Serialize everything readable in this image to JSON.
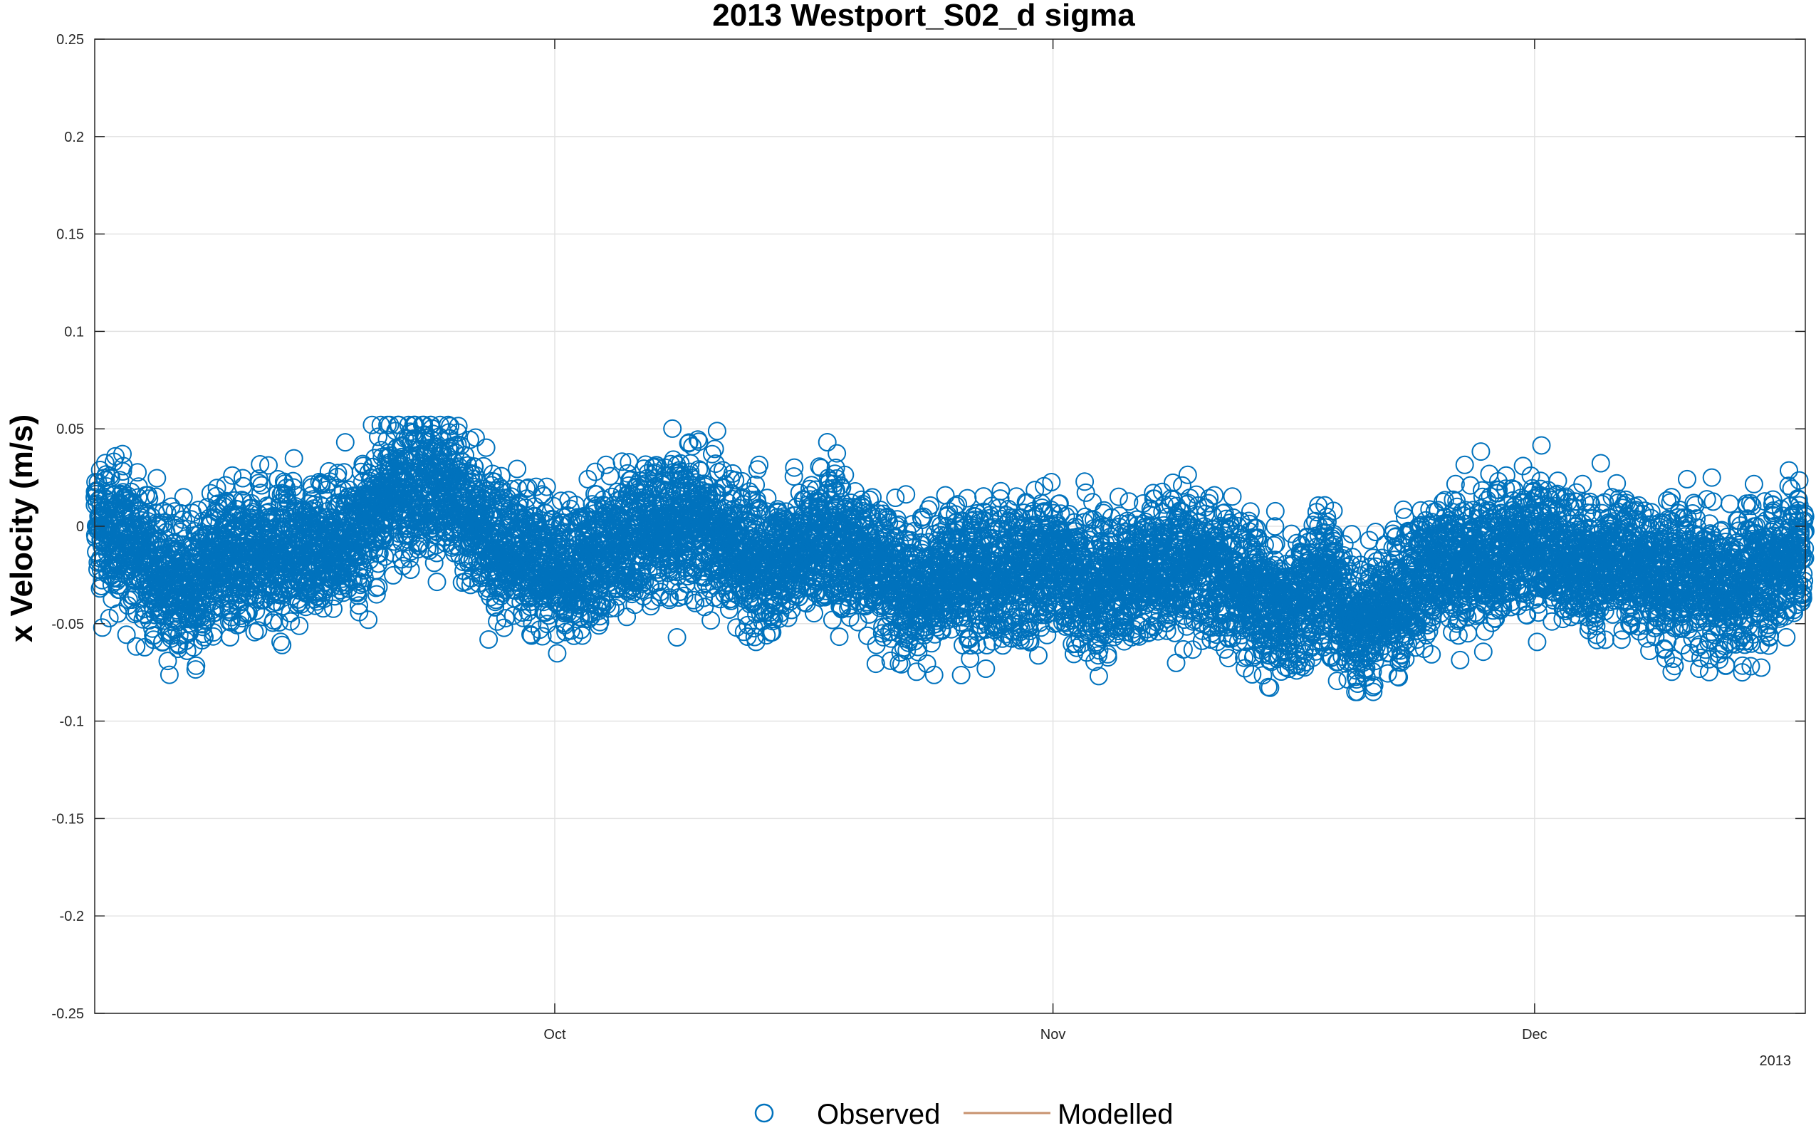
{
  "chart_data": {
    "type": "scatter",
    "title": "2013 Westport_S02_d sigma",
    "xlabel": "",
    "ylabel": "x Velocity (m/s)",
    "ylim": [
      -0.25,
      0.25
    ],
    "yticks": [
      0.25,
      0.2,
      0.15,
      0.1,
      0.05,
      0,
      -0.05,
      -0.1,
      -0.15,
      -0.2,
      -0.25
    ],
    "ytick_labels": [
      "0.25",
      "0.2",
      "0.15",
      "0.1",
      "0.05",
      "0",
      "-0.05",
      "-0.1",
      "-0.15",
      "-0.2",
      "-0.25"
    ],
    "xlim_days": [
      0,
      103
    ],
    "xticks_days": [
      27.7,
      57.7,
      86.7
    ],
    "xtick_labels": [
      "Oct",
      "Nov",
      "Dec"
    ],
    "x_year_label": "2013",
    "grid": true,
    "legend": {
      "placement": "bottom",
      "entries": [
        "Observed",
        "Modelled"
      ]
    },
    "series": [
      {
        "name": "Observed",
        "marker": "circle",
        "color": "#0072BD",
        "x_start_day": 0,
        "x_end_day": 103,
        "approx_points": 9000,
        "centerline_days": [
          0,
          2,
          4,
          6,
          8,
          10,
          12,
          14,
          16,
          18,
          20,
          22,
          24,
          26,
          28,
          30,
          32,
          34,
          36,
          38,
          40,
          42,
          44,
          46,
          48,
          50,
          52,
          54,
          56,
          58,
          60,
          62,
          64,
          66,
          68,
          70,
          72,
          74,
          76,
          78,
          80,
          82,
          84,
          86,
          88,
          90,
          92,
          94,
          96,
          98,
          100,
          103
        ],
        "centerline_values": [
          -0.002,
          -0.01,
          -0.032,
          -0.035,
          -0.015,
          -0.01,
          -0.005,
          -0.01,
          -0.005,
          0.015,
          0.02,
          0.01,
          -0.005,
          -0.01,
          -0.02,
          -0.018,
          -0.01,
          -0.005,
          0.0,
          -0.005,
          -0.015,
          -0.01,
          -0.005,
          -0.015,
          -0.032,
          -0.035,
          -0.025,
          -0.02,
          -0.018,
          -0.015,
          -0.035,
          -0.03,
          -0.025,
          -0.02,
          -0.022,
          -0.03,
          -0.04,
          -0.025,
          -0.055,
          -0.045,
          -0.025,
          -0.02,
          -0.01,
          -0.005,
          -0.01,
          -0.025,
          -0.02,
          -0.03,
          -0.025,
          -0.03,
          -0.02,
          -0.01
        ],
        "amplitude": 0.03
      },
      {
        "name": "Modelled",
        "line": "solid",
        "color": "#C8936F",
        "values": []
      }
    ]
  }
}
